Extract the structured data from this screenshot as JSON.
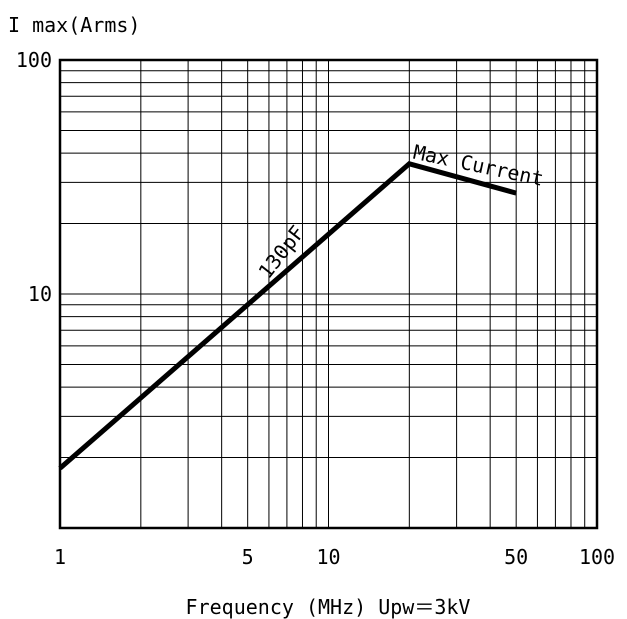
{
  "chart_data": {
    "type": "line",
    "title": "",
    "ylabel": "I max(Arms)",
    "xlabel": "Frequency (MHz) Upw＝3kV",
    "x_scale": "log",
    "y_scale": "log",
    "xlim": [
      1,
      100
    ],
    "ylim": [
      1,
      100
    ],
    "grid": true,
    "x_ticks": [
      {
        "value": 1,
        "label": "1"
      },
      {
        "value": 5,
        "label": "5"
      },
      {
        "value": 10,
        "label": "10"
      },
      {
        "value": 50,
        "label": "50"
      },
      {
        "value": 100,
        "label": "100"
      }
    ],
    "y_ticks": [
      {
        "value": 10,
        "label": "10"
      },
      {
        "value": 100,
        "label": "100"
      }
    ],
    "series": [
      {
        "x": [
          1,
          20,
          50
        ],
        "y": [
          1.8,
          36,
          27
        ]
      }
    ],
    "annotations": [
      {
        "text": "130pF",
        "x": 7.0,
        "y": 14.5
      },
      {
        "text": "Max Current",
        "x": 20.5,
        "y": 38
      }
    ]
  },
  "colors": {
    "line": "#000000",
    "grid": "#000000",
    "background": "#ffffff"
  }
}
